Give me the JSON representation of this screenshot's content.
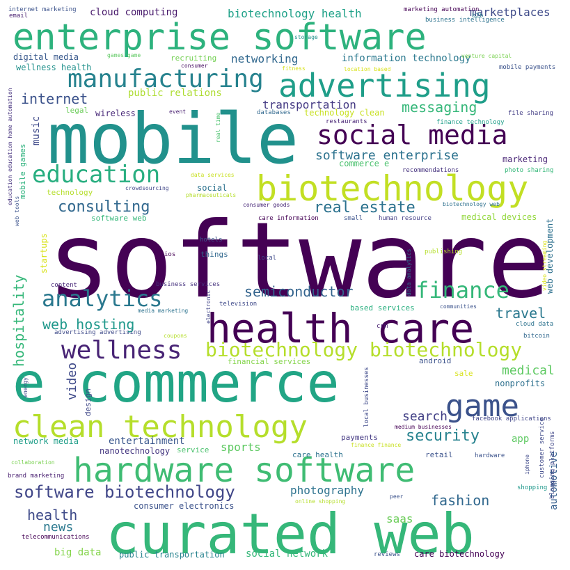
{
  "words": [
    {
      "text": "software",
      "color": "#440154"
    },
    {
      "text": "mobile",
      "color": "#21918c"
    },
    {
      "text": "curated web",
      "color": "#35b779"
    },
    {
      "text": "e commerce",
      "color": "#21a585"
    },
    {
      "text": "enterprise software",
      "color": "#2db27d"
    },
    {
      "text": "health care",
      "color": "#440154"
    },
    {
      "text": "advertising",
      "color": "#1f9e89"
    },
    {
      "text": "biotechnology",
      "color": "#c2df23"
    },
    {
      "text": "hardware software",
      "color": "#3fbc73"
    },
    {
      "text": "clean technology",
      "color": "#b5de2b"
    },
    {
      "text": "social media",
      "color": "#440154"
    },
    {
      "text": "game",
      "color": "#3b528b"
    },
    {
      "text": "manufacturing",
      "color": "#26828e"
    },
    {
      "text": "wellness",
      "color": "#482475"
    },
    {
      "text": "education",
      "color": "#28ae80"
    },
    {
      "text": "biotechnology biotechnology",
      "color": "#b5de2b"
    },
    {
      "text": "analytics",
      "color": "#2a788e"
    },
    {
      "text": "finance",
      "color": "#35b779"
    },
    {
      "text": "software biotechnology",
      "color": "#404688"
    },
    {
      "text": "consulting",
      "color": "#31688e"
    },
    {
      "text": "semiconductor",
      "color": "#33638d"
    },
    {
      "text": "real estate",
      "color": "#2c728e"
    },
    {
      "text": "web hosting",
      "color": "#1f988b"
    },
    {
      "text": "security",
      "color": "#26828e"
    },
    {
      "text": "fashion",
      "color": "#31688e"
    },
    {
      "text": "messaging",
      "color": "#35b779"
    },
    {
      "text": "software enterprise",
      "color": "#2c728e"
    },
    {
      "text": "internet",
      "color": "#3b528b"
    },
    {
      "text": "health",
      "color": "#3e4a89"
    },
    {
      "text": "travel",
      "color": "#2a788e"
    },
    {
      "text": "medical",
      "color": "#5ec962"
    },
    {
      "text": "search",
      "color": "#424086"
    },
    {
      "text": "video",
      "color": "#3e4989"
    },
    {
      "text": "hospitality",
      "color": "#35b779"
    },
    {
      "text": "news",
      "color": "#2a788e"
    },
    {
      "text": "transportation",
      "color": "#443983"
    },
    {
      "text": "photography",
      "color": "#2c728e"
    },
    {
      "text": "marketplaces",
      "color": "#3e4a89"
    },
    {
      "text": "biotechnology health",
      "color": "#1fa188"
    },
    {
      "text": "networking",
      "color": "#31688e"
    },
    {
      "text": "cloud computing",
      "color": "#481a6c"
    },
    {
      "text": "information technology",
      "color": "#2a788e"
    },
    {
      "text": "public relations",
      "color": "#addc30"
    },
    {
      "text": "saas",
      "color": "#6ccd5a"
    },
    {
      "text": "sports",
      "color": "#5ec962"
    },
    {
      "text": "entertainment",
      "color": "#39568c"
    },
    {
      "text": "big data",
      "color": "#84d44b"
    },
    {
      "text": "social network",
      "color": "#35b779"
    },
    {
      "text": "app",
      "color": "#5ec962"
    },
    {
      "text": "automotive",
      "color": "#355f8d"
    },
    {
      "text": "music",
      "color": "#3e4989"
    },
    {
      "text": "consumer electronics",
      "color": "#3b528b"
    },
    {
      "text": "public transportation",
      "color": "#26828e"
    },
    {
      "text": "care biotechnology",
      "color": "#440154"
    },
    {
      "text": "network media",
      "color": "#1f9e89"
    },
    {
      "text": "nanotechnology",
      "color": "#453781"
    },
    {
      "text": "wireless",
      "color": "#482878"
    },
    {
      "text": "technology clean",
      "color": "#c8e020"
    },
    {
      "text": "web development",
      "color": "#2d708e"
    },
    {
      "text": "startups",
      "color": "#d8e219"
    },
    {
      "text": "nonprofits",
      "color": "#2d708e"
    },
    {
      "text": "marketing",
      "color": "#482475"
    },
    {
      "text": "medical devices",
      "color": "#95d840"
    },
    {
      "text": "commerce e",
      "color": "#4ac16d"
    },
    {
      "text": "design",
      "color": "#3f4788"
    },
    {
      "text": "wellness health",
      "color": "#21918c"
    },
    {
      "text": "digital media",
      "color": "#38588c"
    },
    {
      "text": "legal",
      "color": "#6ccd5a"
    },
    {
      "text": "based services",
      "color": "#29af7f"
    },
    {
      "text": "financial services",
      "color": "#84d44b"
    },
    {
      "text": "android",
      "color": "#3b528b"
    },
    {
      "text": "sale",
      "color": "#d8e219"
    },
    {
      "text": "care health",
      "color": "#2c728e"
    },
    {
      "text": "retail",
      "color": "#3b528b"
    },
    {
      "text": "payments",
      "color": "#443983"
    },
    {
      "text": "software web",
      "color": "#35b779"
    },
    {
      "text": "things",
      "color": "#31688e"
    },
    {
      "text": "social",
      "color": "#2c728e"
    },
    {
      "text": "technology",
      "color": "#b5de2b"
    },
    {
      "text": "mobile games",
      "color": "#2db27d"
    },
    {
      "text": "recruiting",
      "color": "#75d054"
    },
    {
      "text": "service",
      "color": "#4ac16d"
    },
    {
      "text": "local businesses",
      "color": "#3e4989"
    },
    {
      "text": "education education home automation",
      "color": "#46327e"
    },
    {
      "text": "internet marketing",
      "color": "#3b528b"
    },
    {
      "text": "email",
      "color": "#481f70"
    },
    {
      "text": "games game",
      "color": "#5ec962"
    },
    {
      "text": "marketing automation",
      "color": "#440154"
    },
    {
      "text": "b2b",
      "color": "#287c8e"
    },
    {
      "text": "business intelligence",
      "color": "#2c728e"
    },
    {
      "text": "storage",
      "color": "#20928c"
    },
    {
      "text": "venture capital",
      "color": "#7ad151"
    },
    {
      "text": "consumer",
      "color": "#471063"
    },
    {
      "text": "fitness",
      "color": "#d8e219"
    },
    {
      "text": "mobile payments",
      "color": "#3b528b"
    },
    {
      "text": "location based",
      "color": "#d8e219"
    },
    {
      "text": "event",
      "color": "#481f70"
    },
    {
      "text": "real time",
      "color": "#4ac16d"
    },
    {
      "text": "databases",
      "color": "#31688e"
    },
    {
      "text": "restaurants",
      "color": "#482475"
    },
    {
      "text": "finance technology",
      "color": "#1f9e89"
    },
    {
      "text": "file sharing",
      "color": "#433e85"
    },
    {
      "text": "recommendations",
      "color": "#46337f"
    },
    {
      "text": "photo sharing",
      "color": "#35b779"
    },
    {
      "text": "crowdsourcing",
      "color": "#404688"
    },
    {
      "text": "data services",
      "color": "#c8e020"
    },
    {
      "text": "pharmaceuticals",
      "color": "#b5de2b"
    },
    {
      "text": "consumer goods",
      "color": "#482878"
    },
    {
      "text": "web tools",
      "color": "#3b528b"
    },
    {
      "text": "care information",
      "color": "#440154"
    },
    {
      "text": "small",
      "color": "#3b528b"
    },
    {
      "text": "human resource",
      "color": "#433e85"
    },
    {
      "text": "biotechnology web",
      "color": "#2d708e"
    },
    {
      "text": "hotels",
      "color": "#3b528b"
    },
    {
      "text": "ios",
      "color": "#440154"
    },
    {
      "text": "local",
      "color": "#3e4989"
    },
    {
      "text": "publishing",
      "color": "#b5de2b"
    },
    {
      "text": "data analytics",
      "color": "#2d708e"
    },
    {
      "text": "video streaming",
      "color": "#d8e219"
    },
    {
      "text": "content",
      "color": "#482878"
    },
    {
      "text": "business services",
      "color": "#46327e"
    },
    {
      "text": "electronic",
      "color": "#414487"
    },
    {
      "text": "television",
      "color": "#3e4989"
    },
    {
      "text": "communities",
      "color": "#3b528b"
    },
    {
      "text": "media marketing",
      "color": "#2c728e"
    },
    {
      "text": "crm",
      "color": "#481f70"
    },
    {
      "text": "cloud data",
      "color": "#2c728e"
    },
    {
      "text": "advertising advertising",
      "color": "#3e4a89"
    },
    {
      "text": "coupons",
      "color": "#b5de2b"
    },
    {
      "text": "bitcoin",
      "color": "#31688e"
    },
    {
      "text": "energy",
      "color": "#3e4989"
    },
    {
      "text": "medium businesses",
      "color": "#440154"
    },
    {
      "text": "facebook applications",
      "color": "#404688"
    },
    {
      "text": "finance finance",
      "color": "#c8e020"
    },
    {
      "text": "customer service",
      "color": "#3e4989"
    },
    {
      "text": "blogging platforms",
      "color": "#404688"
    },
    {
      "text": "collaboration",
      "color": "#7ad151"
    },
    {
      "text": "hardware",
      "color": "#3b528b"
    },
    {
      "text": "brand marketing",
      "color": "#481f70"
    },
    {
      "text": "iphone",
      "color": "#3e4989"
    },
    {
      "text": "shopping",
      "color": "#1f988b"
    },
    {
      "text": "online shopping",
      "color": "#b5de2b"
    },
    {
      "text": "peer",
      "color": "#3b528b"
    },
    {
      "text": "telecommunications",
      "color": "#440154"
    },
    {
      "text": "reviews",
      "color": "#3b528b"
    }
  ]
}
